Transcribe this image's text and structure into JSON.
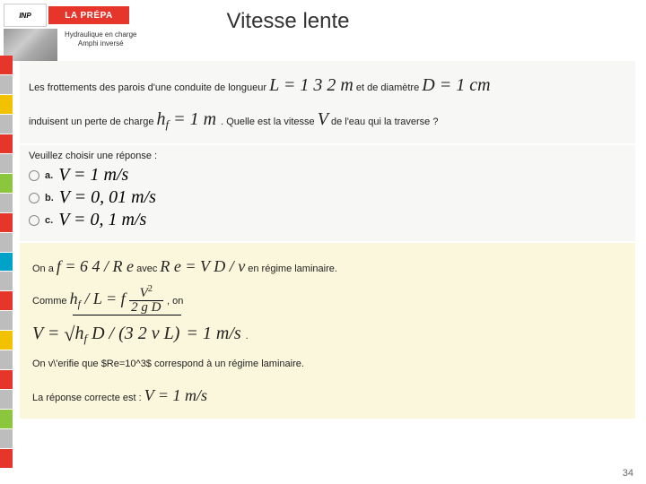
{
  "header": {
    "logo_inp": "INP",
    "logo_prepa": "LA PRÉPA",
    "subtitle_l1": "Hydraulique en charge",
    "subtitle_l2": "Amphi inversé",
    "title": "Vitesse lente"
  },
  "sidebar_colors": [
    "#e6352b",
    "#bdbdbd",
    "#f2c200",
    "#bdbdbd",
    "#e6352b",
    "#bdbdbd",
    "#8cc63f",
    "#bdbdbd",
    "#e6352b",
    "#bdbdbd",
    "#00a3c7",
    "#bdbdbd",
    "#e6352b",
    "#bdbdbd",
    "#f2c200",
    "#bdbdbd",
    "#e6352b",
    "#bdbdbd",
    "#8cc63f",
    "#bdbdbd",
    "#e6352b"
  ],
  "question": {
    "t1": "Les frottements des parois d'une conduite de longueur ",
    "L": "L = 1 3 2 m",
    "t2": " et de diamètre ",
    "D": "D = 1 cm",
    "t3": "induisent un perte de charge ",
    "hf": "h",
    "hf_sub": "f",
    "hf_val": " = 1 m",
    "t4": ". Quelle est la vitesse ",
    "V": "V",
    "t5": " de l'eau qui la traverse ?"
  },
  "choices": {
    "prompt": "Veuillez choisir une réponse :",
    "a_label": "a.",
    "a": "V = 1 m/s",
    "b_label": "b.",
    "b": "V = 0, 01 m/s",
    "c_label": "c.",
    "c": "V = 0, 1 m/s"
  },
  "explain": {
    "l1a": "On a ",
    "f1": "f = 6 4 / R e",
    "l1b": " avec ",
    "f2": "R e = V  D / ν",
    "l1c": " en régime laminaire.",
    "l2a": "Comme ",
    "lhs": "h",
    "lhs_sub": "f",
    "lhs2": " / L = f ",
    "frac_num": "V",
    "frac_num_sup": "2",
    "frac_den": "2 g D",
    "l2b": ", on",
    "l3a": "V = ",
    "sqrt_inner_h": "h",
    "sqrt_inner_sub": "f",
    "sqrt_inner": "  D / (3 2  ν  L)",
    "l3b": " = 1 m/s",
    "l4": "On v\\'erifie que $Re=10^3$ correspond à un régime laminaire.",
    "l5a": "La réponse correcte est : ",
    "ans": "V = 1 m/s"
  },
  "pagenum": "34"
}
